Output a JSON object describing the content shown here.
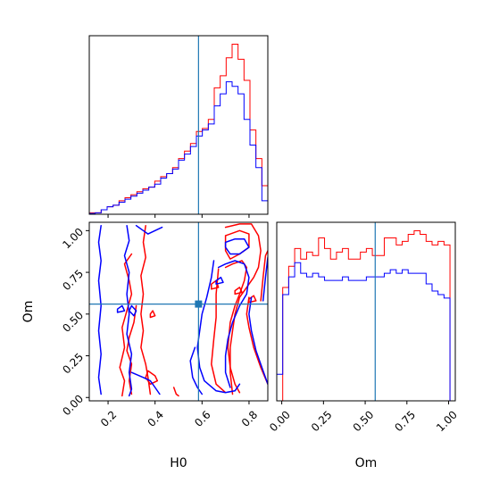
{
  "chart_data": {
    "type": "corner",
    "parameters": [
      "H0",
      "Om"
    ],
    "truth": {
      "H0": 0.585,
      "Om": 0.56
    },
    "colors": {
      "series_a": "#ff0000",
      "series_b": "#0000ff",
      "truth": "#1f77b4"
    },
    "ranges": {
      "H0": [
        0.12,
        0.88
      ],
      "Om": [
        -0.02,
        1.05
      ],
      "Om_hist": [
        -0.03,
        1.04
      ]
    },
    "ticks": {
      "H0": [
        0.2,
        0.4,
        0.6,
        0.8
      ],
      "H0_labels": [
        "0.2",
        "0.4",
        "0.6",
        "0.8"
      ],
      "Om": [
        0.0,
        0.25,
        0.5,
        0.75,
        1.0
      ],
      "Om_labels": [
        "0.00",
        "0.25",
        "0.50",
        "0.75",
        "1.00"
      ]
    },
    "hist_H0": {
      "bin_edges": [
        0.12,
        0.1453,
        0.1707,
        0.196,
        0.2213,
        0.2467,
        0.272,
        0.2973,
        0.3227,
        0.348,
        0.3733,
        0.3987,
        0.424,
        0.4493,
        0.4747,
        0.5,
        0.5253,
        0.5507,
        0.576,
        0.6013,
        0.6267,
        0.652,
        0.6773,
        0.7027,
        0.728,
        0.7533,
        0.7787,
        0.804,
        0.8293,
        0.8547,
        0.88
      ],
      "series": [
        {
          "color": "red",
          "counts": [
            1,
            1,
            3,
            5,
            6,
            9,
            11,
            13,
            15,
            17,
            18,
            22,
            25,
            27,
            31,
            37,
            42,
            47,
            55,
            57,
            63,
            84,
            92,
            104,
            113,
            103,
            89,
            56,
            37,
            19
          ]
        },
        {
          "color": "blue",
          "counts": [
            0.5,
            1,
            3,
            5,
            6,
            8,
            10,
            12,
            14,
            16,
            18,
            20,
            24,
            27,
            30,
            36,
            40,
            45,
            52,
            56,
            60,
            72,
            80,
            88,
            85,
            80,
            63,
            46,
            31,
            9
          ]
        }
      ]
    },
    "hist_Om": {
      "bin_edges": [
        -0.03,
        0.0058,
        0.0416,
        0.0774,
        0.1132,
        0.149,
        0.1848,
        0.2206,
        0.2564,
        0.2922,
        0.328,
        0.3638,
        0.3996,
        0.4354,
        0.4712,
        0.507,
        0.5428,
        0.5786,
        0.6144,
        0.6502,
        0.686,
        0.7218,
        0.7576,
        0.7934,
        0.8292,
        0.865,
        0.9008,
        0.9366,
        0.9724,
        1.0082,
        1.04
      ],
      "series": [
        {
          "color": "red",
          "counts": [
            0,
            64,
            76,
            86,
            80,
            84,
            82,
            92,
            86,
            80,
            84,
            86,
            80,
            80,
            84,
            86,
            82,
            82,
            92,
            92,
            88,
            90,
            94,
            96,
            94,
            90,
            88,
            90,
            88,
            0
          ]
        },
        {
          "color": "blue",
          "counts": [
            15,
            60,
            70,
            78,
            72,
            70,
            72,
            70,
            68,
            68,
            68,
            70,
            68,
            68,
            68,
            70,
            70,
            70,
            72,
            74,
            72,
            74,
            72,
            72,
            72,
            66,
            62,
            60,
            58,
            0
          ]
        }
      ]
    },
    "contours_2d": [
      {
        "color": "red",
        "paths": [
          [
            [
              0.36,
              1.03
            ],
            [
              0.35,
              0.93
            ],
            [
              0.36,
              0.84
            ],
            [
              0.34,
              0.73
            ],
            [
              0.35,
              0.62
            ],
            [
              0.34,
              0.5
            ],
            [
              0.35,
              0.4
            ],
            [
              0.34,
              0.3
            ],
            [
              0.36,
              0.2
            ],
            [
              0.37,
              0.12
            ],
            [
              0.38,
              0.02
            ]
          ],
          [
            [
              0.32,
              0.55
            ],
            [
              0.31,
              0.45
            ],
            [
              0.29,
              0.36
            ],
            [
              0.28,
              0.28
            ],
            [
              0.3,
              0.2
            ],
            [
              0.29,
              0.1
            ],
            [
              0.3,
              0.02
            ]
          ],
          [
            [
              0.37,
              0.16
            ],
            [
              0.4,
              0.13
            ],
            [
              0.41,
              0.1
            ],
            [
              0.38,
              0.08
            ],
            [
              0.36,
              0.12
            ],
            [
              0.37,
              0.16
            ]
          ],
          [
            [
              0.3,
              0.86
            ],
            [
              0.27,
              0.8
            ],
            [
              0.29,
              0.7
            ],
            [
              0.3,
              0.62
            ],
            [
              0.28,
              0.52
            ],
            [
              0.26,
              0.42
            ],
            [
              0.27,
              0.3
            ],
            [
              0.25,
              0.18
            ],
            [
              0.27,
              0.1
            ],
            [
              0.26,
              0.01
            ]
          ],
          [
            [
              0.7,
              1.02
            ],
            [
              0.76,
              1.04
            ],
            [
              0.81,
              1.04
            ],
            [
              0.84,
              0.97
            ],
            [
              0.85,
              0.88
            ],
            [
              0.84,
              0.78
            ],
            [
              0.82,
              0.72
            ],
            [
              0.79,
              0.66
            ],
            [
              0.76,
              0.6
            ],
            [
              0.74,
              0.5
            ],
            [
              0.73,
              0.4
            ],
            [
              0.72,
              0.3
            ],
            [
              0.72,
              0.15
            ],
            [
              0.73,
              0.02
            ]
          ],
          [
            [
              0.7,
              0.97
            ],
            [
              0.76,
              1.0
            ],
            [
              0.8,
              0.98
            ],
            [
              0.8,
              0.9
            ],
            [
              0.76,
              0.86
            ],
            [
              0.72,
              0.83
            ],
            [
              0.7,
              0.88
            ],
            [
              0.7,
              0.97
            ]
          ],
          [
            [
              0.67,
              0.77
            ],
            [
              0.66,
              0.62
            ],
            [
              0.66,
              0.48
            ],
            [
              0.65,
              0.35
            ],
            [
              0.64,
              0.2
            ],
            [
              0.66,
              0.08
            ],
            [
              0.7,
              0.03
            ]
          ],
          [
            [
              0.7,
              0.78
            ],
            [
              0.73,
              0.8
            ],
            [
              0.77,
              0.82
            ],
            [
              0.79,
              0.78
            ],
            [
              0.78,
              0.7
            ],
            [
              0.76,
              0.62
            ],
            [
              0.74,
              0.55
            ],
            [
              0.72,
              0.45
            ],
            [
              0.71,
              0.3
            ],
            [
              0.72,
              0.18
            ],
            [
              0.74,
              0.08
            ],
            [
              0.76,
              0.03
            ]
          ],
          [
            [
              0.8,
              0.6
            ],
            [
              0.79,
              0.5
            ],
            [
              0.8,
              0.42
            ],
            [
              0.82,
              0.3
            ],
            [
              0.85,
              0.18
            ],
            [
              0.88,
              0.08
            ]
          ],
          [
            [
              0.85,
              0.58
            ],
            [
              0.86,
              0.72
            ],
            [
              0.87,
              0.85
            ],
            [
              0.88,
              0.88
            ]
          ],
          [
            [
              0.64,
              0.68
            ],
            [
              0.66,
              0.7
            ],
            [
              0.67,
              0.66
            ],
            [
              0.64,
              0.65
            ],
            [
              0.64,
              0.68
            ]
          ],
          [
            [
              0.8,
              0.59
            ],
            [
              0.82,
              0.61
            ],
            [
              0.83,
              0.58
            ],
            [
              0.8,
              0.57
            ],
            [
              0.8,
              0.59
            ]
          ],
          [
            [
              0.74,
              0.64
            ],
            [
              0.76,
              0.66
            ],
            [
              0.77,
              0.63
            ],
            [
              0.74,
              0.62
            ],
            [
              0.74,
              0.64
            ]
          ],
          [
            [
              0.48,
              0.06
            ],
            [
              0.49,
              0.02
            ],
            [
              0.5,
              0.01
            ]
          ],
          [
            [
              0.38,
              0.5
            ],
            [
              0.39,
              0.52
            ],
            [
              0.4,
              0.49
            ],
            [
              0.38,
              0.48
            ],
            [
              0.38,
              0.5
            ]
          ]
        ]
      },
      {
        "color": "blue",
        "paths": [
          [
            [
              0.17,
              1.03
            ],
            [
              0.16,
              0.93
            ],
            [
              0.17,
              0.82
            ],
            [
              0.16,
              0.7
            ],
            [
              0.17,
              0.55
            ],
            [
              0.16,
              0.4
            ],
            [
              0.17,
              0.26
            ],
            [
              0.16,
              0.12
            ],
            [
              0.17,
              0.02
            ]
          ],
          [
            [
              0.28,
              1.03
            ],
            [
              0.29,
              0.94
            ],
            [
              0.27,
              0.85
            ],
            [
              0.29,
              0.75
            ],
            [
              0.28,
              0.62
            ],
            [
              0.29,
              0.5
            ],
            [
              0.28,
              0.38
            ],
            [
              0.3,
              0.26
            ],
            [
              0.29,
              0.15
            ],
            [
              0.3,
              0.05
            ],
            [
              0.29,
              0.01
            ]
          ],
          [
            [
              0.32,
              1.03
            ],
            [
              0.35,
              1.0
            ],
            [
              0.37,
              0.98
            ],
            [
              0.4,
              1.0
            ],
            [
              0.43,
              1.02
            ]
          ],
          [
            [
              0.3,
              0.55
            ],
            [
              0.32,
              0.52
            ],
            [
              0.31,
              0.49
            ],
            [
              0.29,
              0.52
            ],
            [
              0.3,
              0.55
            ]
          ],
          [
            [
              0.3,
              0.15
            ],
            [
              0.35,
              0.12
            ],
            [
              0.38,
              0.1
            ],
            [
              0.4,
              0.06
            ],
            [
              0.42,
              0.02
            ]
          ],
          [
            [
              0.65,
              0.82
            ],
            [
              0.64,
              0.72
            ],
            [
              0.62,
              0.6
            ],
            [
              0.6,
              0.5
            ],
            [
              0.59,
              0.4
            ],
            [
              0.58,
              0.3
            ],
            [
              0.59,
              0.18
            ],
            [
              0.61,
              0.1
            ],
            [
              0.66,
              0.04
            ],
            [
              0.7,
              0.03
            ],
            [
              0.74,
              0.04
            ],
            [
              0.76,
              0.08
            ]
          ],
          [
            [
              0.67,
              0.78
            ],
            [
              0.7,
              0.8
            ],
            [
              0.74,
              0.82
            ],
            [
              0.78,
              0.8
            ],
            [
              0.8,
              0.72
            ],
            [
              0.79,
              0.62
            ],
            [
              0.76,
              0.55
            ],
            [
              0.73,
              0.45
            ],
            [
              0.71,
              0.35
            ],
            [
              0.7,
              0.25
            ],
            [
              0.7,
              0.15
            ],
            [
              0.72,
              0.06
            ]
          ],
          [
            [
              0.57,
              0.3
            ],
            [
              0.55,
              0.22
            ],
            [
              0.56,
              0.12
            ],
            [
              0.58,
              0.06
            ],
            [
              0.6,
              0.02
            ]
          ],
          [
            [
              0.81,
              0.6
            ],
            [
              0.8,
              0.5
            ],
            [
              0.81,
              0.4
            ],
            [
              0.83,
              0.28
            ],
            [
              0.86,
              0.16
            ],
            [
              0.88,
              0.08
            ]
          ],
          [
            [
              0.86,
              0.58
            ],
            [
              0.87,
              0.72
            ],
            [
              0.88,
              0.84
            ]
          ],
          [
            [
              0.7,
              0.93
            ],
            [
              0.74,
              0.95
            ],
            [
              0.78,
              0.95
            ],
            [
              0.8,
              0.9
            ],
            [
              0.76,
              0.86
            ],
            [
              0.72,
              0.86
            ],
            [
              0.7,
              0.9
            ],
            [
              0.7,
              0.93
            ]
          ],
          [
            [
              0.66,
              0.7
            ],
            [
              0.68,
              0.72
            ],
            [
              0.69,
              0.69
            ],
            [
              0.66,
              0.68
            ],
            [
              0.66,
              0.7
            ]
          ],
          [
            [
              0.24,
              0.53
            ],
            [
              0.26,
              0.55
            ],
            [
              0.27,
              0.52
            ],
            [
              0.24,
              0.51
            ],
            [
              0.24,
              0.53
            ]
          ]
        ]
      }
    ]
  }
}
